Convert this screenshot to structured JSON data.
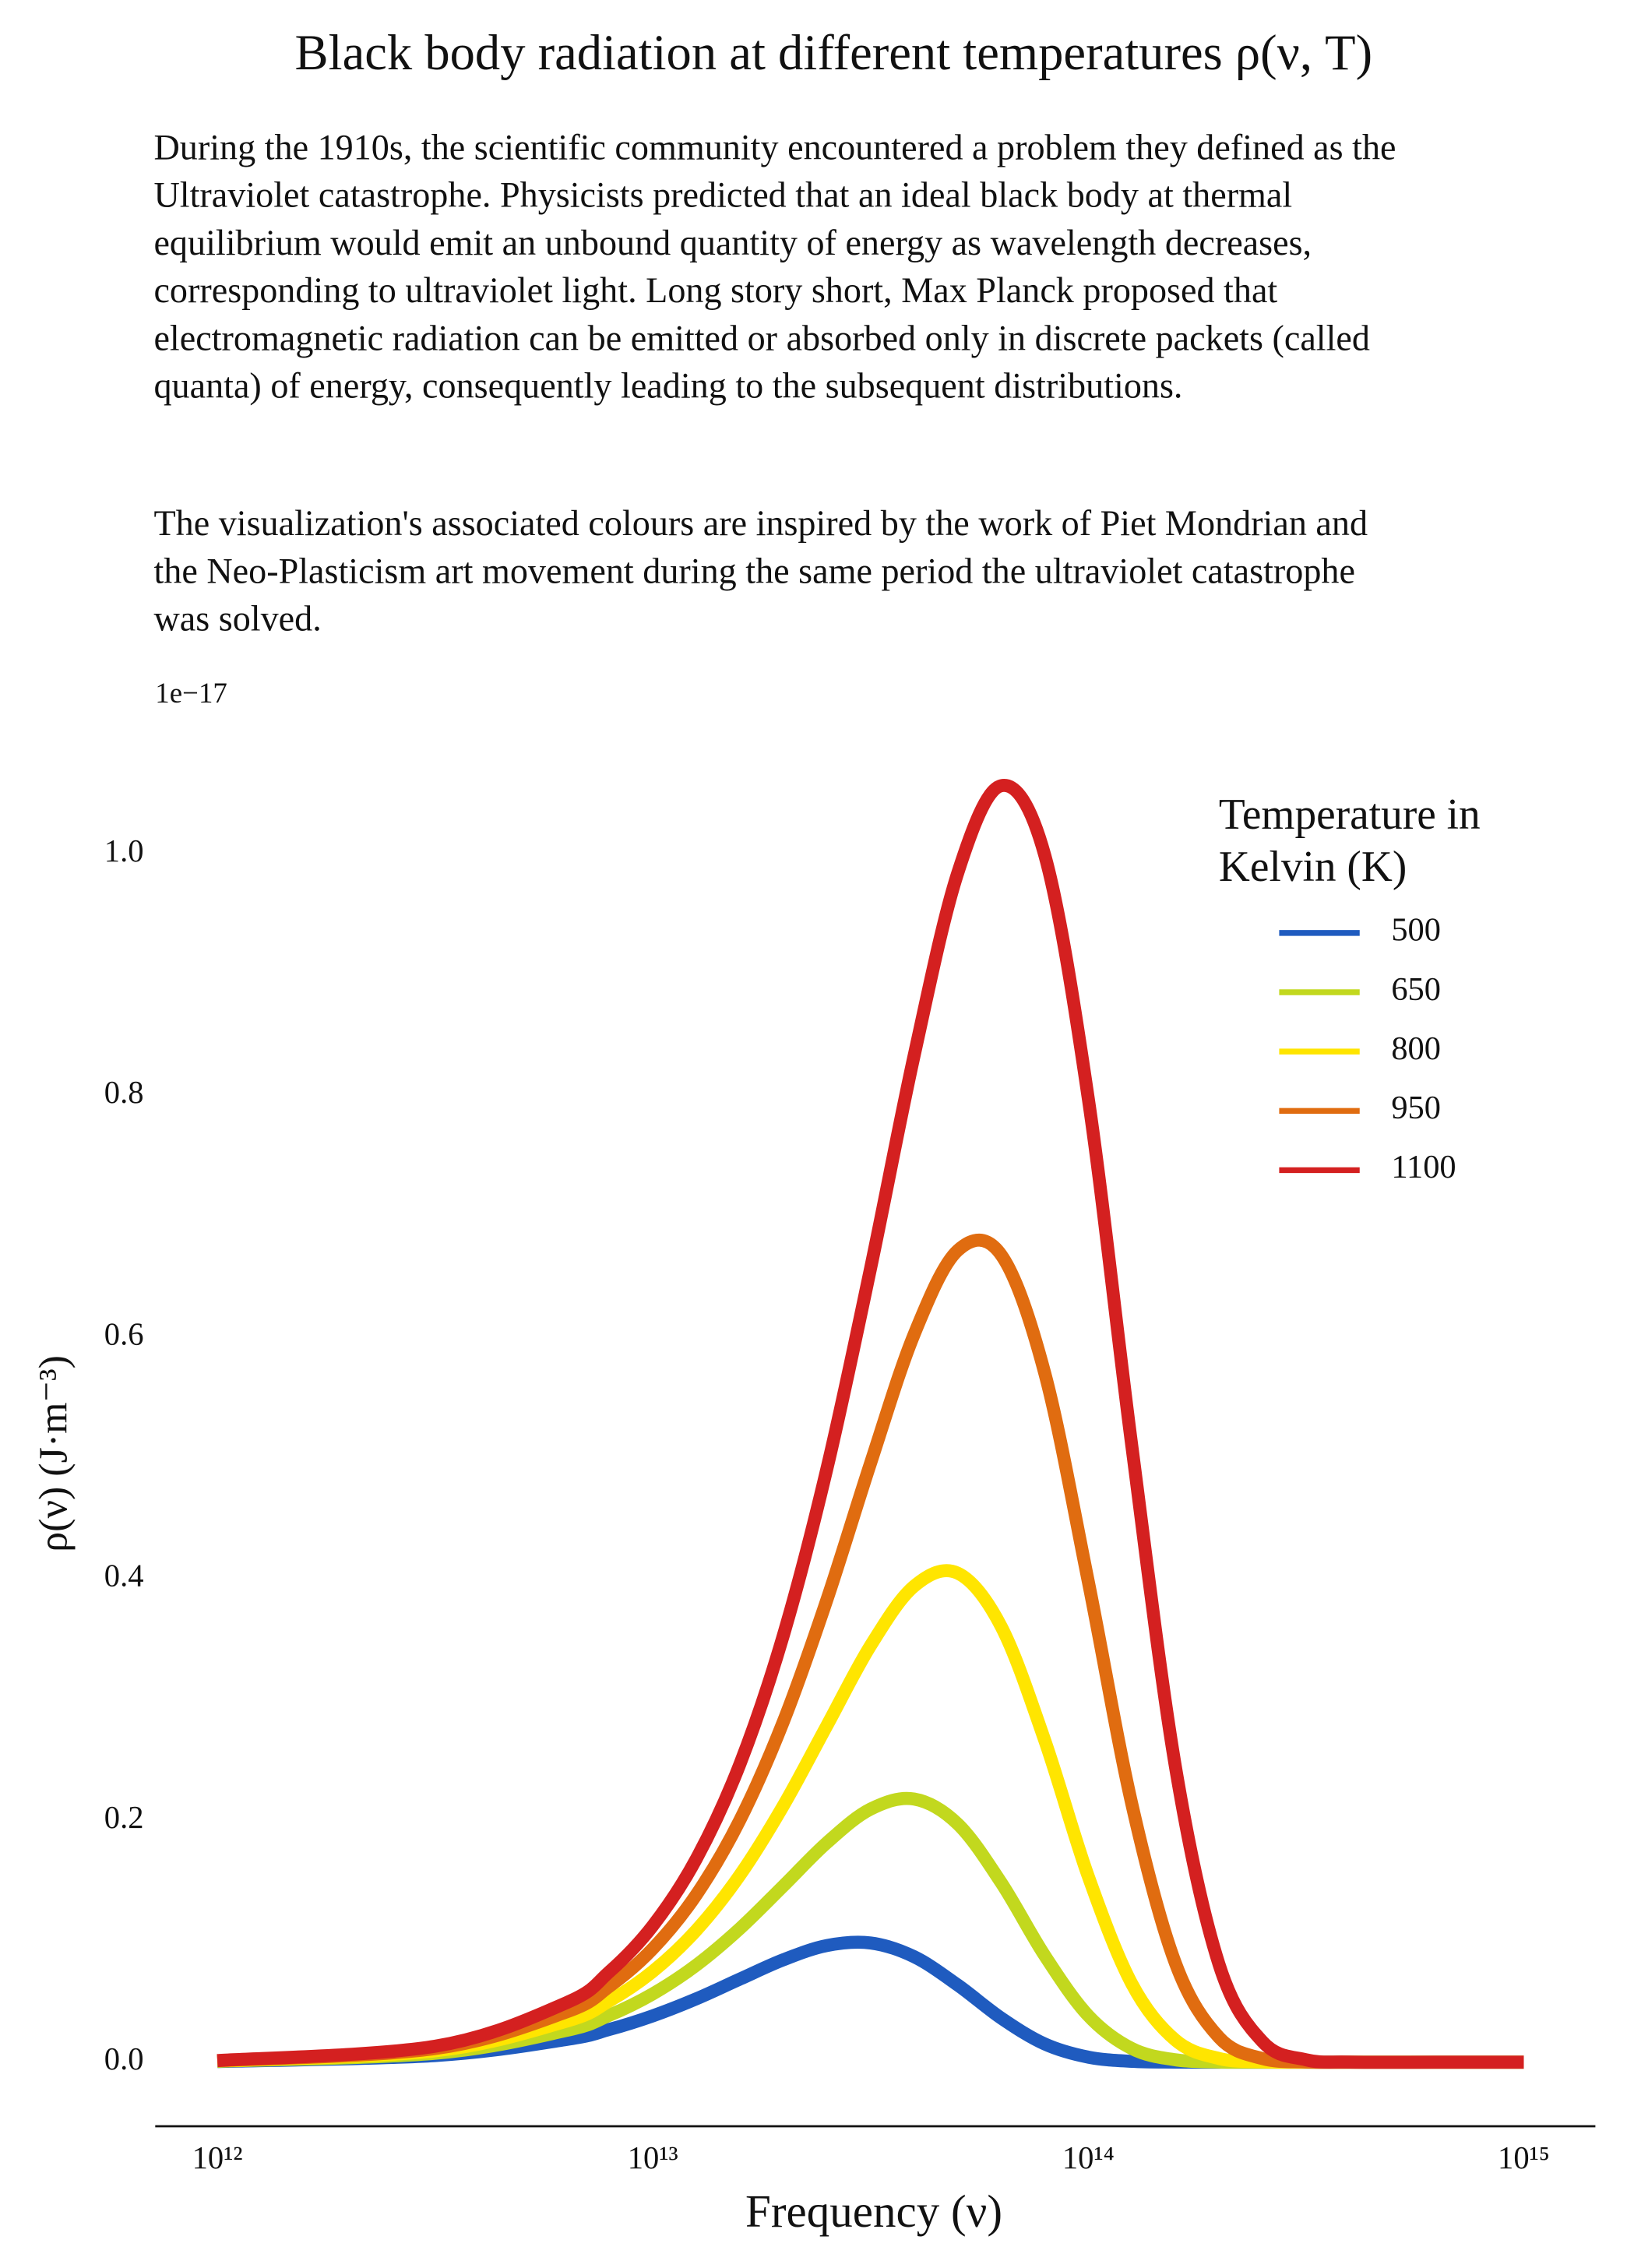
{
  "chart_data": {
    "type": "line",
    "title": "Black body radiation at different temperatures ρ(ν, T)",
    "description": [
      "During the 1910s, the scientific community encountered a problem they defined as the Ultraviolet catastrophe. Physicists predicted that an ideal black body at thermal equilibrium would emit an unbound quantity of energy as wavelength decreases, corresponding to ultraviolet light. Long story short, Max Planck proposed that electromagnetic radiation can be emitted or absorbed only in discrete packets (called quanta) of energy, consequently leading to the subsequent distributions.",
      "The visualization's associated colours are inspired by the work of Piet Mondrian and the Neo-Plasticism art movement during the same period the ultraviolet catastrophe was solved."
    ],
    "y_offset_label": "1e−17",
    "x_label": "Frequency (ν)",
    "y_label": "ρ(ν) (J·m⁻³)",
    "x_scale": "log",
    "xlim": [
      720000000000.0,
      1460000000000000.0
    ],
    "xticks": [
      {
        "value": 1000000000000.0,
        "label": "10¹²"
      },
      {
        "value": 10000000000000.0,
        "label": "10¹³"
      },
      {
        "value": 100000000000000.0,
        "label": "10¹⁴"
      },
      {
        "value": 1000000000000000.0,
        "label": "10¹⁵"
      }
    ],
    "ylim": [
      -0.053,
      1.113
    ],
    "yticks": [
      {
        "value": 0,
        "label": "0.0"
      },
      0.2,
      0.4,
      0.6,
      0.8,
      {
        "value": 1,
        "label": "1.0"
      }
    ],
    "grid": false,
    "legend_title": "Temperature in Kelvin (K)",
    "legend_position": "upper right",
    "x": [
      1000000000000.0,
      3162000000000.0,
      6310000000000.0,
      7943000000000.0,
      10000000000000.0,
      12590000000000.0,
      15850000000000.0,
      19950000000000.0,
      25120000000000.0,
      31620000000000.0,
      39810000000000.0,
      50120000000000.0,
      63100000000000.0,
      79430000000000.0,
      100000000000000.0,
      125900000000000.0,
      158500000000000.0,
      199500000000000.0,
      251200000000000.0,
      316200000000000.0,
      398100000000000.0,
      631000000000000.0,
      1000000000000000.0
    ],
    "series": [
      {
        "name": "500",
        "color": "#1f5bbf",
        "values": [
          0.0006,
          0.0055,
          0.0187,
          0.0271,
          0.0384,
          0.0525,
          0.0688,
          0.0848,
          0.0966,
          0.0987,
          0.0873,
          0.0639,
          0.0365,
          0.0151,
          0.0042,
          0.0007,
          0.0001,
          0,
          0,
          0,
          0,
          0,
          0
        ]
      },
      {
        "name": "650",
        "color": "#c2d81e",
        "values": [
          0.0008,
          0.0074,
          0.0262,
          0.0388,
          0.0566,
          0.0804,
          0.1107,
          0.146,
          0.1818,
          0.2095,
          0.2178,
          0.1972,
          0.1485,
          0.0882,
          0.0385,
          0.0113,
          0.002,
          0.0002,
          0,
          0,
          0,
          0,
          0
        ]
      },
      {
        "name": "800",
        "color": "#ffe500",
        "values": [
          0.001,
          0.0094,
          0.0338,
          0.0507,
          0.0752,
          0.1093,
          0.1549,
          0.2125,
          0.2788,
          0.3448,
          0.394,
          0.4048,
          0.3605,
          0.2663,
          0.1537,
          0.0648,
          0.0183,
          0.0031,
          0.0003,
          0,
          0,
          0,
          0
        ]
      },
      {
        "name": "950",
        "color": "#e06c10",
        "values": [
          0.0012,
          0.0113,
          0.0414,
          0.0627,
          0.094,
          0.1387,
          0.2005,
          0.2821,
          0.3831,
          0.4958,
          0.6024,
          0.6718,
          0.6681,
          0.5703,
          0.3977,
          0.2135,
          0.0819,
          0.0206,
          0.003,
          0.0002,
          0,
          0,
          0
        ]
      },
      {
        "name": "1100",
        "color": "#d42020",
        "values": [
          0.0014,
          0.0132,
          0.049,
          0.0748,
          0.113,
          0.1684,
          0.2468,
          0.3536,
          0.4917,
          0.657,
          0.8331,
          0.9841,
          1.0565,
          0.999,
          0.7974,
          0.5097,
          0.2445,
          0.0812,
          0.017,
          0.002,
          0.0001,
          0,
          0
        ]
      }
    ]
  }
}
